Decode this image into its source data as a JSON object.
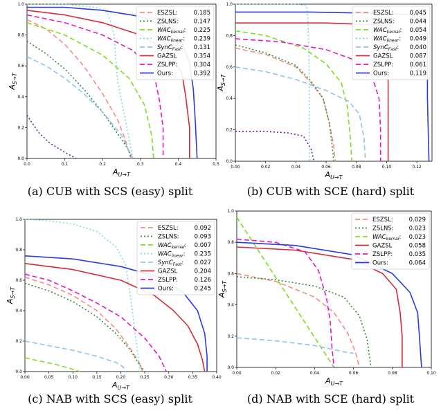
{
  "chart_data": [
    {
      "type": "line",
      "caption": "(a) CUB with SCS (easy) split",
      "xlabel": "A_{U→T}",
      "ylabel": "A_{S→T}",
      "xlim": [
        0,
        0.5
      ],
      "ylim": [
        0,
        1.0
      ],
      "xticks": [
        "0.0",
        "0.1",
        "0.2",
        "0.3",
        "0.4",
        "0.5"
      ],
      "yticks": [
        "0.0",
        "0.2",
        "0.4",
        "0.6",
        "0.8",
        "1.0"
      ],
      "legend_position": "top-right",
      "series": [
        {
          "name": "ESZSL:",
          "sub": "",
          "value": "0.185",
          "color": "#f28e85",
          "dash": "7,4",
          "x": [
            0,
            0.05,
            0.1,
            0.15,
            0.2,
            0.24,
            0.26,
            0.275
          ],
          "y": [
            0.9,
            0.84,
            0.74,
            0.6,
            0.42,
            0.25,
            0.12,
            0
          ]
        },
        {
          "name": "ZSLNS:",
          "sub": "",
          "value": "0.147",
          "color": "#2e8b2e",
          "dash": "2,3",
          "x": [
            0,
            0.05,
            0.1,
            0.15,
            0.2,
            0.24,
            0.27,
            0.275
          ],
          "y": [
            0.76,
            0.68,
            0.58,
            0.45,
            0.3,
            0.16,
            0.05,
            0
          ]
        },
        {
          "name": "WAC",
          "sub": "kernal",
          "value": "0.225",
          "color": "#80dd22",
          "dash": "7,4",
          "x": [
            0,
            0.1,
            0.2,
            0.27,
            0.31,
            0.33,
            0.335
          ],
          "y": [
            0.88,
            0.8,
            0.67,
            0.52,
            0.35,
            0.15,
            0
          ]
        },
        {
          "name": "WAC",
          "sub": "linear",
          "value": "0.239",
          "color": "#7fd9e6",
          "dash": "2,3",
          "x": [
            0,
            0.1,
            0.18,
            0.21,
            0.22,
            0.23,
            0.24,
            0.28
          ],
          "y": [
            1.0,
            1.0,
            0.98,
            0.95,
            0.9,
            0.8,
            0.5,
            0
          ]
        },
        {
          "name": "SynC",
          "sub": "Fast",
          "value": "0.131",
          "color": "#8fc3e8",
          "dash": "7,4",
          "x": [
            0,
            0.05,
            0.1,
            0.15,
            0.2,
            0.25,
            0.28
          ],
          "y": [
            0.66,
            0.6,
            0.52,
            0.42,
            0.3,
            0.15,
            0
          ]
        },
        {
          "name": "GAZSL",
          "sub": "",
          "value": "0.354",
          "color": "#d12b3a",
          "dash": "",
          "x": [
            0,
            0.1,
            0.2,
            0.3,
            0.38,
            0.41,
            0.42,
            0.43,
            0.43
          ],
          "y": [
            0.96,
            0.93,
            0.88,
            0.8,
            0.68,
            0.55,
            0.4,
            0.2,
            0
          ]
        },
        {
          "name": "ZSLPP:",
          "sub": "",
          "value": "0.304",
          "color": "#e815c8",
          "dash": "7,4",
          "x": [
            0,
            0.1,
            0.2,
            0.28,
            0.32,
            0.34,
            0.35,
            0.36,
            0.36
          ],
          "y": [
            0.93,
            0.88,
            0.8,
            0.7,
            0.6,
            0.5,
            0.38,
            0.2,
            0
          ]
        },
        {
          "name": "Ours:",
          "sub": "",
          "value": "0.392",
          "color": "#2a3ae0",
          "dash": "",
          "x": [
            0,
            0.1,
            0.2,
            0.3,
            0.37,
            0.41,
            0.43,
            0.44,
            0.445,
            0.45
          ],
          "y": [
            0.98,
            0.98,
            0.96,
            0.92,
            0.85,
            0.75,
            0.62,
            0.45,
            0.25,
            0
          ]
        },
        {
          "name": "",
          "sub": "",
          "value": "",
          "color": "#6a1d9a",
          "dash": "2,3",
          "x": [
            0,
            0.03,
            0.06,
            0.1,
            0.13
          ],
          "y": [
            0.28,
            0.17,
            0.1,
            0.04,
            0
          ]
        }
      ]
    },
    {
      "type": "line",
      "caption": "(b) CUB with SCE (hard) split",
      "xlabel": "A_{U→T}",
      "ylabel": "A_{S→T}",
      "xlim": [
        0,
        0.13
      ],
      "ylim": [
        0,
        1.0
      ],
      "xticks": [
        "0.00",
        "0.02",
        "0.04",
        "0.06",
        "0.08",
        "0.10",
        "0.12"
      ],
      "yticks": [
        "0.0",
        "0.2",
        "0.4",
        "0.6",
        "0.8",
        "1.0"
      ],
      "legend_position": "top-right",
      "series": [
        {
          "name": "ESZSL:",
          "sub": "",
          "value": "0.045",
          "color": "#f28e85",
          "dash": "7,4",
          "x": [
            0,
            0.02,
            0.04,
            0.05,
            0.058,
            0.062,
            0.065,
            0.066
          ],
          "y": [
            0.72,
            0.68,
            0.6,
            0.5,
            0.4,
            0.25,
            0.1,
            0
          ]
        },
        {
          "name": "ZSLNS:",
          "sub": "",
          "value": "0.044",
          "color": "#2e8b2e",
          "dash": "2,3",
          "x": [
            0,
            0.02,
            0.04,
            0.05,
            0.058,
            0.062,
            0.064,
            0.065
          ],
          "y": [
            0.74,
            0.69,
            0.61,
            0.51,
            0.4,
            0.25,
            0.1,
            0
          ]
        },
        {
          "name": "WAC",
          "sub": "kernal",
          "value": "0.054",
          "color": "#80dd22",
          "dash": "7,4",
          "x": [
            0,
            0.02,
            0.045,
            0.06,
            0.07,
            0.074,
            0.076,
            0.077
          ],
          "y": [
            0.83,
            0.8,
            0.72,
            0.62,
            0.5,
            0.35,
            0.15,
            0
          ]
        },
        {
          "name": "WAC",
          "sub": "linear",
          "value": "0.049",
          "color": "#7fd9e6",
          "dash": "2,3",
          "x": [
            0,
            0.04,
            0.047,
            0.048,
            0.049,
            0.049
          ],
          "y": [
            1.0,
            1.0,
            0.99,
            0.9,
            0.5,
            0
          ]
        },
        {
          "name": "SynC",
          "sub": "Fast",
          "value": "0.040",
          "color": "#8fc3e8",
          "dash": "7,4",
          "x": [
            0,
            0.02,
            0.04,
            0.06,
            0.075,
            0.082,
            0.085,
            0.086
          ],
          "y": [
            0.6,
            0.57,
            0.52,
            0.45,
            0.38,
            0.3,
            0.15,
            0
          ]
        },
        {
          "name": "GAZSL",
          "sub": "",
          "value": "0.087",
          "color": "#d12b3a",
          "dash": "",
          "x": [
            0,
            0.06,
            0.09,
            0.1,
            0.101,
            0.101
          ],
          "y": [
            0.88,
            0.88,
            0.87,
            0.86,
            0.5,
            0
          ]
        },
        {
          "name": "ZSLPP:",
          "sub": "",
          "value": "0.061",
          "color": "#e815c8",
          "dash": "7,4",
          "x": [
            0,
            0.03,
            0.06,
            0.08,
            0.09,
            0.095,
            0.096,
            0.096
          ],
          "y": [
            0.78,
            0.76,
            0.71,
            0.64,
            0.55,
            0.4,
            0.2,
            0
          ]
        },
        {
          "name": "Ours:",
          "sub": "",
          "value": "0.119",
          "color": "#2a3ae0",
          "dash": "",
          "x": [
            0,
            0.05,
            0.1,
            0.12,
            0.125,
            0.127,
            0.127,
            0.128
          ],
          "y": [
            0.95,
            0.95,
            0.94,
            0.93,
            0.9,
            0.8,
            0.4,
            0
          ]
        },
        {
          "name": "",
          "sub": "",
          "value": "",
          "color": "#6a1d9a",
          "dash": "2,3",
          "x": [
            0,
            0.02,
            0.035,
            0.045,
            0.05,
            0.052
          ],
          "y": [
            0.19,
            0.19,
            0.18,
            0.16,
            0.08,
            0
          ]
        }
      ]
    },
    {
      "type": "line",
      "caption": "(c) NAB with SCS (easy) split",
      "xlabel": "A_{U→T}",
      "ylabel": "A_{S→T}",
      "xlim": [
        0,
        0.4
      ],
      "ylim": [
        0,
        1.0
      ],
      "xticks": [
        "0.00",
        "0.05",
        "0.10",
        "0.15",
        "0.20",
        "0.25",
        "0.30",
        "0.35",
        "0.40"
      ],
      "yticks": [
        "0.0",
        "0.2",
        "0.4",
        "0.6",
        "0.8",
        "1.0"
      ],
      "legend_position": "top-right",
      "series": [
        {
          "name": "ESZSL:",
          "sub": "",
          "value": "0.092",
          "color": "#f28e85",
          "dash": "7,4",
          "x": [
            0,
            0.05,
            0.1,
            0.15,
            0.19,
            0.22,
            0.24,
            0.245
          ],
          "y": [
            0.62,
            0.57,
            0.5,
            0.4,
            0.28,
            0.15,
            0.05,
            0
          ]
        },
        {
          "name": "ZSLNS:",
          "sub": "",
          "value": "0.093",
          "color": "#2e8b2e",
          "dash": "2,3",
          "x": [
            0,
            0.05,
            0.1,
            0.15,
            0.19,
            0.22,
            0.24,
            0.25
          ],
          "y": [
            0.58,
            0.53,
            0.46,
            0.36,
            0.25,
            0.14,
            0.04,
            0
          ]
        },
        {
          "name": "WAC",
          "sub": "kernal",
          "value": "0.007",
          "color": "#80dd22",
          "dash": "7,4",
          "x": [
            0,
            0.03,
            0.06,
            0.09,
            0.115
          ],
          "y": [
            0.09,
            0.07,
            0.05,
            0.025,
            0
          ]
        },
        {
          "name": "WAC",
          "sub": "linear",
          "value": "0.235",
          "color": "#7fd9e6",
          "dash": "2,3",
          "x": [
            0,
            0.05,
            0.1,
            0.15,
            0.19,
            0.21,
            0.22,
            0.23,
            0.24
          ],
          "y": [
            1.0,
            0.99,
            0.97,
            0.92,
            0.82,
            0.7,
            0.5,
            0.25,
            0
          ]
        },
        {
          "name": "SynC",
          "sub": "Fast",
          "value": "0.027",
          "color": "#8fc3e8",
          "dash": "7,4",
          "x": [
            0,
            0.05,
            0.1,
            0.15,
            0.19,
            0.205,
            0.21
          ],
          "y": [
            0.2,
            0.17,
            0.14,
            0.1,
            0.06,
            0.03,
            0
          ]
        },
        {
          "name": "GAZSL",
          "sub": "",
          "value": "0.204",
          "color": "#d12b3a",
          "dash": "",
          "x": [
            0,
            0.1,
            0.2,
            0.27,
            0.31,
            0.34,
            0.36,
            0.37,
            0.375
          ],
          "y": [
            0.71,
            0.67,
            0.6,
            0.5,
            0.4,
            0.3,
            0.18,
            0.08,
            0
          ]
        },
        {
          "name": "ZSLPP:",
          "sub": "",
          "value": "0.126",
          "color": "#e815c8",
          "dash": "7,4",
          "x": [
            0,
            0.05,
            0.1,
            0.15,
            0.2,
            0.25,
            0.28,
            0.295
          ],
          "y": [
            0.64,
            0.6,
            0.53,
            0.45,
            0.36,
            0.22,
            0.1,
            0
          ]
        },
        {
          "name": "Ours:",
          "sub": "",
          "value": "0.245",
          "color": "#2a3ae0",
          "dash": "",
          "x": [
            0,
            0.1,
            0.2,
            0.28,
            0.33,
            0.36,
            0.375,
            0.38,
            0.38
          ],
          "y": [
            0.76,
            0.74,
            0.69,
            0.62,
            0.52,
            0.4,
            0.25,
            0.1,
            0
          ]
        }
      ]
    },
    {
      "type": "line",
      "caption": "(d) NAB with SCE (hard) split",
      "xlabel": "A_{U→T}",
      "ylabel": "A_{S→T}",
      "xlim": [
        0,
        0.1
      ],
      "ylim": [
        0,
        1.0
      ],
      "xticks": [
        "0.00",
        "0.02",
        "0.04",
        "0.06",
        "0.08",
        "0.10"
      ],
      "yticks": [
        "0.0",
        "0.2",
        "0.4",
        "0.6",
        "0.8",
        "1.0"
      ],
      "legend_position": "top-right",
      "series": [
        {
          "name": "ESZSL:",
          "sub": "",
          "value": "0.029",
          "color": "#f28e85",
          "dash": "7,4",
          "x": [
            0,
            0.02,
            0.04,
            0.05,
            0.057,
            0.061,
            0.063
          ],
          "y": [
            0.6,
            0.55,
            0.45,
            0.35,
            0.22,
            0.1,
            0
          ]
        },
        {
          "name": "ZSLNS:",
          "sub": "",
          "value": "0.023",
          "color": "#2e8b2e",
          "dash": "2,3",
          "x": [
            0,
            0.02,
            0.04,
            0.055,
            0.063,
            0.067,
            0.069
          ],
          "y": [
            0.58,
            0.56,
            0.52,
            0.45,
            0.33,
            0.18,
            0
          ]
        },
        {
          "name": "WAC",
          "sub": "kernal",
          "value": "0.023",
          "color": "#80dd22",
          "dash": "7,4",
          "x": [
            0,
            0.05
          ],
          "y": [
            0.96,
            0
          ]
        },
        {
          "name": "GAZSL",
          "sub": "",
          "value": "0.058",
          "color": "#d12b3a",
          "dash": "",
          "x": [
            0,
            0.03,
            0.06,
            0.075,
            0.082,
            0.084,
            0.085,
            0.085
          ],
          "y": [
            0.77,
            0.75,
            0.69,
            0.6,
            0.5,
            0.35,
            0.2,
            0
          ]
        },
        {
          "name": "ZSLPP:",
          "sub": "",
          "value": "0.035",
          "color": "#e815c8",
          "dash": "7,4",
          "x": [
            0,
            0.02,
            0.035,
            0.042,
            0.046,
            0.048,
            0.049,
            0.05
          ],
          "y": [
            0.82,
            0.8,
            0.74,
            0.62,
            0.45,
            0.3,
            0.12,
            0
          ]
        },
        {
          "name": "Ours:",
          "sub": "",
          "value": "0.064",
          "color": "#2a3ae0",
          "dash": "",
          "x": [
            0,
            0.03,
            0.06,
            0.08,
            0.089,
            0.093,
            0.094,
            0.095
          ],
          "y": [
            0.8,
            0.78,
            0.72,
            0.6,
            0.48,
            0.35,
            0.18,
            0
          ]
        },
        {
          "name": "",
          "sub": "",
          "value": "",
          "color": "#8fc3e8",
          "dash": "7,4",
          "x": [
            0,
            0.02,
            0.04,
            0.055,
            0.06
          ],
          "y": [
            0.19,
            0.17,
            0.14,
            0.1,
            0.09
          ]
        }
      ]
    }
  ]
}
